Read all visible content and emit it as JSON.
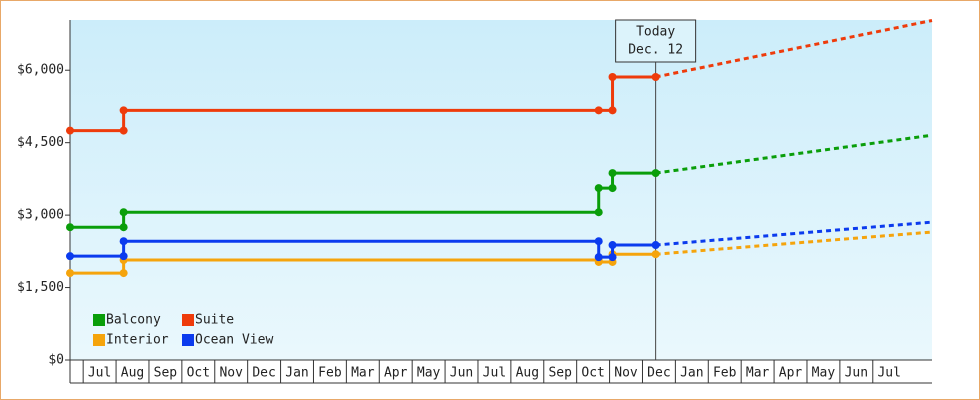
{
  "chart_data": {
    "type": "step-line",
    "categories": [
      "Jul",
      "Aug",
      "Sep",
      "Oct",
      "Nov",
      "Dec",
      "Jan",
      "Feb",
      "Mar",
      "Apr",
      "May",
      "Jun",
      "Jul",
      "Aug",
      "Sep",
      "Oct",
      "Nov",
      "Dec",
      "Jan",
      "Feb",
      "Mar",
      "Apr",
      "May",
      "Jun",
      "Jul"
    ],
    "xlim": [
      -0.9,
      25.3
    ],
    "ylim": [
      0,
      7040
    ],
    "yticks": [
      {
        "value": 0,
        "label": "$0"
      },
      {
        "value": 1500,
        "label": "$1,500"
      },
      {
        "value": 3000,
        "label": "$3,000"
      },
      {
        "value": 4500,
        "label": "$4,500"
      },
      {
        "value": 6000,
        "label": "$6,000"
      }
    ],
    "annotation": {
      "lines": [
        "Today",
        "Dec. 12"
      ],
      "x": 16.9
    },
    "series": [
      {
        "name": "Balcony",
        "color": "#0a9e0a",
        "x": [
          -0.9,
          0.73,
          0.73,
          15.17,
          15.17,
          15.59,
          15.59,
          16.9
        ],
        "values": [
          2750,
          2750,
          3060,
          3060,
          3560,
          3560,
          3870,
          3870
        ],
        "forecast": {
          "x": [
            16.9,
            25.3
          ],
          "values": [
            3870,
            4655
          ]
        }
      },
      {
        "name": "Suite",
        "color": "#ee3b0b",
        "x": [
          -0.9,
          0.73,
          0.73,
          15.17,
          15.59,
          15.59,
          16.9
        ],
        "values": [
          4750,
          4750,
          5170,
          5170,
          5170,
          5860,
          5860
        ],
        "forecast": {
          "x": [
            16.9,
            25.3
          ],
          "values": [
            5860,
            7030
          ]
        }
      },
      {
        "name": "Interior",
        "color": "#f5a40c",
        "x": [
          -0.9,
          0.73,
          0.73,
          15.17,
          15.17,
          15.59,
          15.59,
          16.9
        ],
        "values": [
          1800,
          1800,
          2070,
          2070,
          2030,
          2030,
          2190,
          2190
        ],
        "forecast": {
          "x": [
            16.9,
            25.3
          ],
          "values": [
            2190,
            2650
          ]
        }
      },
      {
        "name": "Ocean View",
        "color": "#0b3bee",
        "x": [
          -0.9,
          0.73,
          0.73,
          15.17,
          15.17,
          15.59,
          15.59,
          16.9
        ],
        "values": [
          2150,
          2150,
          2460,
          2460,
          2130,
          2130,
          2380,
          2380
        ],
        "forecast": {
          "x": [
            16.9,
            25.3
          ],
          "values": [
            2380,
            2855
          ]
        }
      }
    ]
  }
}
